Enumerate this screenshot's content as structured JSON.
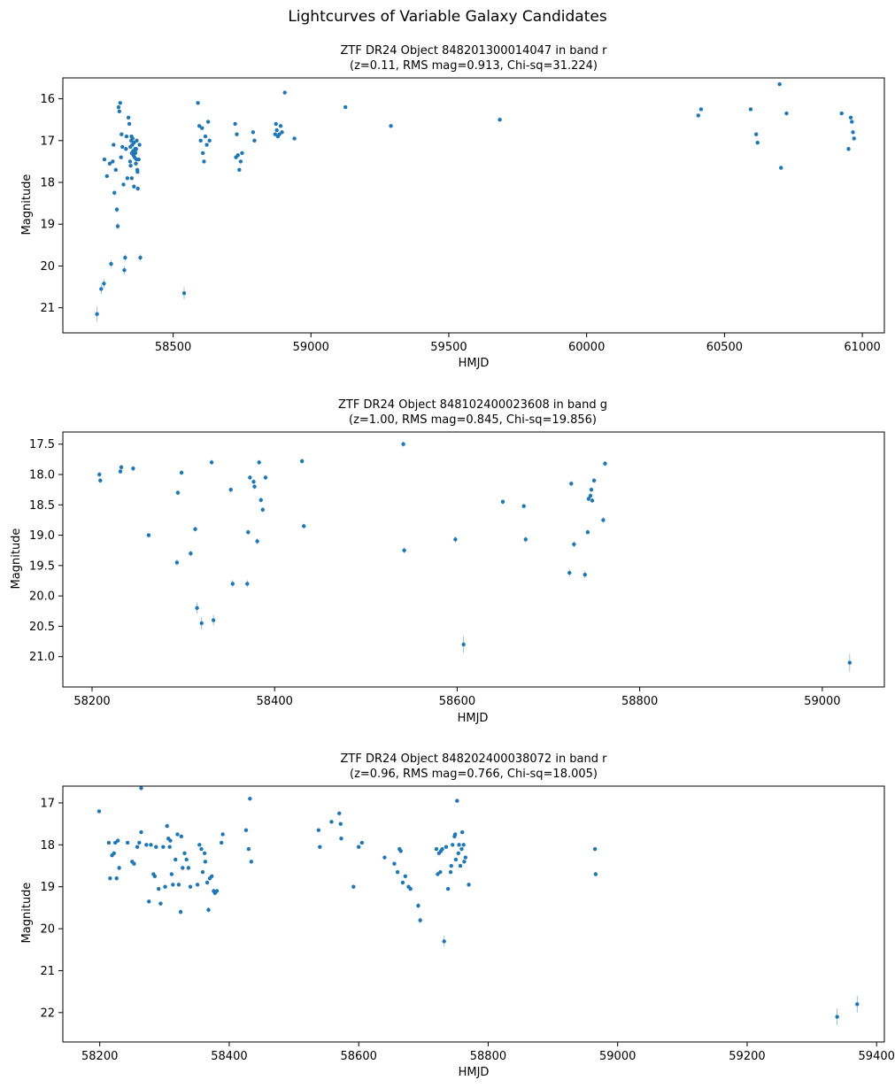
{
  "figure": {
    "title": "Lightcurves of Variable Galaxy Candidates"
  },
  "chart_data": [
    {
      "type": "scatter",
      "title": "ZTF DR24 Object 848201300014047 in band r",
      "subtitle": "(z=0.11, RMS mag=0.913, Chi-sq=31.224)",
      "xlabel": "HMJD",
      "ylabel": "Magnitude",
      "xlim": [
        58100,
        61080
      ],
      "ylim": [
        21.6,
        15.5
      ],
      "y_inverted": true,
      "xticks": [
        58500,
        59000,
        59500,
        60000,
        60500,
        61000
      ],
      "xtick_labels": [
        "58500",
        "59000",
        "59500",
        "60000",
        "60500",
        "61000"
      ],
      "yticks": [
        16,
        17,
        18,
        19,
        20,
        21
      ],
      "ytick_labels": [
        "16",
        "17",
        "18",
        "19",
        "20",
        "21"
      ],
      "color": "#1f77b4",
      "x": [
        58224,
        58239,
        58249,
        58251,
        58260,
        58270,
        58275,
        58281,
        58284,
        58287,
        58292,
        58296,
        58299,
        58302,
        58305,
        58308,
        58311,
        58313,
        58316,
        58320,
        58323,
        58326,
        58329,
        58331,
        58334,
        58338,
        58341,
        58344,
        58346,
        58348,
        58349,
        58350,
        58352,
        58353,
        58355,
        58356,
        58358,
        58360,
        58362,
        58363,
        58365,
        58366,
        58368,
        58370,
        58372,
        58375,
        58378,
        58381,
        58345,
        58350,
        58354,
        58358,
        58362,
        58367,
        58371,
        58540,
        58590,
        58595,
        58600,
        58605,
        58608,
        58612,
        58617,
        58622,
        58627,
        58632,
        58725,
        58728,
        58731,
        58735,
        58740,
        58745,
        58750,
        58790,
        58795,
        58870,
        58873,
        58876,
        58880,
        58885,
        58890,
        58895,
        58905,
        58940,
        59125,
        59290,
        59685,
        60405,
        60415,
        60595,
        60615,
        60620,
        60700,
        60705,
        60725,
        60925,
        60950,
        60958,
        60962,
        60966,
        60970
      ],
      "y": [
        21.15,
        20.55,
        20.42,
        17.45,
        17.85,
        17.55,
        19.95,
        17.5,
        17.1,
        18.25,
        17.7,
        18.65,
        19.05,
        16.2,
        16.3,
        16.1,
        17.4,
        16.85,
        17.15,
        18.05,
        20.1,
        19.8,
        17.2,
        16.9,
        17.9,
        16.45,
        16.6,
        17.5,
        17.6,
        17.0,
        16.9,
        17.3,
        17.1,
        16.95,
        17.25,
        17.35,
        17.05,
        17.4,
        17.2,
        17.3,
        17.55,
        17.2,
        17.0,
        17.7,
        18.15,
        17.45,
        17.1,
        19.8,
        17.15,
        17.9,
        17.3,
        18.1,
        17.25,
        17.45,
        17.75,
        20.65,
        16.1,
        16.65,
        17.0,
        16.7,
        17.3,
        17.5,
        16.9,
        17.1,
        16.55,
        17.0,
        16.6,
        17.4,
        16.85,
        17.35,
        17.7,
        17.5,
        17.3,
        16.8,
        17.0,
        16.85,
        16.6,
        16.75,
        16.9,
        16.85,
        16.65,
        16.8,
        15.85,
        16.95,
        16.2,
        16.65,
        16.5,
        16.4,
        16.25,
        16.25,
        16.85,
        17.05,
        15.65,
        17.65,
        16.35,
        16.35,
        17.2,
        16.45,
        16.55,
        16.8,
        16.95
      ],
      "yerr": [
        0.18,
        0.12,
        0.1,
        0.04,
        0.04,
        0.04,
        0.09,
        0.04,
        0.04,
        0.06,
        0.04,
        0.07,
        0.08,
        0.03,
        0.03,
        0.03,
        0.04,
        0.04,
        0.04,
        0.05,
        0.1,
        0.08,
        0.04,
        0.03,
        0.04,
        0.03,
        0.03,
        0.04,
        0.04,
        0.04,
        0.04,
        0.04,
        0.04,
        0.04,
        0.04,
        0.04,
        0.04,
        0.04,
        0.04,
        0.04,
        0.04,
        0.04,
        0.04,
        0.04,
        0.05,
        0.04,
        0.04,
        0.08,
        0.04,
        0.04,
        0.04,
        0.05,
        0.04,
        0.04,
        0.04,
        0.14,
        0.03,
        0.03,
        0.04,
        0.03,
        0.04,
        0.04,
        0.04,
        0.04,
        0.03,
        0.04,
        0.03,
        0.04,
        0.04,
        0.04,
        0.04,
        0.04,
        0.04,
        0.04,
        0.04,
        0.04,
        0.03,
        0.04,
        0.04,
        0.04,
        0.03,
        0.04,
        0.03,
        0.04,
        0.03,
        0.03,
        0.03,
        0.03,
        0.03,
        0.03,
        0.04,
        0.04,
        0.03,
        0.04,
        0.03,
        0.03,
        0.04,
        0.03,
        0.03,
        0.04,
        0.04
      ]
    },
    {
      "type": "scatter",
      "title": "ZTF DR24 Object 848102400023608 in band g",
      "subtitle": "(z=1.00, RMS mag=0.845, Chi-sq=19.856)",
      "xlabel": "HMJD",
      "ylabel": "Magnitude",
      "xlim": [
        58168,
        59068
      ],
      "ylim": [
        21.5,
        17.3
      ],
      "y_inverted": true,
      "xticks": [
        58200,
        58400,
        58600,
        58800,
        59000
      ],
      "xtick_labels": [
        "58200",
        "58400",
        "58600",
        "58800",
        "59000"
      ],
      "yticks": [
        17.5,
        18.0,
        18.5,
        19.0,
        19.5,
        20.0,
        20.5,
        21.0
      ],
      "ytick_labels": [
        "17.5",
        "18.0",
        "18.5",
        "19.0",
        "19.5",
        "20.0",
        "20.5",
        "21.0"
      ],
      "color": "#1f77b4",
      "x": [
        58208,
        58209,
        58231,
        58232,
        58245,
        58262,
        58293,
        58294,
        58298,
        58308,
        58313,
        58315,
        58320,
        58331,
        58333,
        58352,
        58354,
        58370,
        58371,
        58373,
        58377,
        58378,
        58381,
        58383,
        58385,
        58387,
        58390,
        58430,
        58432,
        58541,
        58542,
        58598,
        58607,
        58650,
        58673,
        58675,
        58723,
        58725,
        58728,
        58740,
        58743,
        58744,
        58746,
        58747,
        58748,
        58750,
        58760,
        58762,
        59030
      ],
      "y": [
        18.0,
        18.1,
        17.95,
        17.88,
        17.9,
        19.0,
        19.45,
        18.3,
        17.97,
        19.3,
        18.9,
        20.2,
        20.45,
        17.8,
        20.4,
        18.25,
        19.8,
        19.8,
        18.95,
        18.05,
        18.12,
        18.2,
        19.1,
        17.8,
        18.42,
        18.58,
        18.05,
        17.78,
        18.85,
        17.5,
        19.25,
        19.07,
        20.8,
        18.45,
        18.52,
        19.07,
        19.62,
        18.15,
        19.15,
        19.65,
        18.95,
        18.4,
        18.35,
        18.25,
        18.43,
        18.1,
        18.75,
        17.82,
        21.1
      ],
      "yerr": [
        0.04,
        0.04,
        0.04,
        0.04,
        0.04,
        0.04,
        0.05,
        0.04,
        0.04,
        0.05,
        0.04,
        0.09,
        0.1,
        0.04,
        0.09,
        0.04,
        0.06,
        0.06,
        0.04,
        0.04,
        0.04,
        0.04,
        0.05,
        0.04,
        0.04,
        0.04,
        0.04,
        0.04,
        0.04,
        0.04,
        0.05,
        0.05,
        0.14,
        0.04,
        0.04,
        0.05,
        0.06,
        0.04,
        0.05,
        0.06,
        0.04,
        0.04,
        0.04,
        0.04,
        0.04,
        0.04,
        0.05,
        0.04,
        0.15
      ]
    },
    {
      "type": "scatter",
      "title": "ZTF DR24 Object 848202400038072 in band r",
      "subtitle": "(z=0.96, RMS mag=0.766, Chi-sq=18.005)",
      "xlabel": "HMJD",
      "ylabel": "Magnitude",
      "xlim": [
        58143,
        59412
      ],
      "ylim": [
        22.7,
        16.6
      ],
      "y_inverted": true,
      "xticks": [
        58200,
        58400,
        58600,
        58800,
        59000,
        59200,
        59400
      ],
      "xtick_labels": [
        "58200",
        "58400",
        "58600",
        "58800",
        "59000",
        "59200",
        "59400"
      ],
      "yticks": [
        17,
        18,
        19,
        20,
        21,
        22
      ],
      "ytick_labels": [
        "17",
        "18",
        "19",
        "20",
        "21",
        "22"
      ],
      "color": "#1f77b4",
      "x": [
        58199,
        58214,
        58216,
        58219,
        58222,
        58224,
        58226,
        58228,
        58230,
        58243,
        58250,
        58253,
        58258,
        58261,
        58264,
        58264,
        58272,
        58276,
        58279,
        58283,
        58285,
        58287,
        58291,
        58294,
        58298,
        58301,
        58304,
        58306,
        58308,
        58309,
        58311,
        58313,
        58317,
        58320,
        58322,
        58325,
        58326,
        58328,
        58331,
        58334,
        58337,
        58340,
        58351,
        58354,
        58357,
        58359,
        58362,
        58363,
        58366,
        58368,
        58370,
        58373,
        58376,
        58378,
        58381,
        58388,
        58390,
        58426,
        58430,
        58432,
        58434,
        58538,
        58540,
        58558,
        58570,
        58572,
        58573,
        58592,
        58600,
        58605,
        58640,
        58655,
        58660,
        58663,
        58665,
        58668,
        58672,
        58677,
        58680,
        58692,
        58695,
        58720,
        58722,
        58724,
        58726,
        58727,
        58729,
        58732,
        58735,
        58738,
        58742,
        58743,
        58745,
        58748,
        58749,
        58750,
        58752,
        58754,
        58755,
        58757,
        58759,
        58760,
        58762,
        58763,
        58765,
        58770,
        58965,
        58966,
        59339,
        59370
      ],
      "y": [
        17.2,
        17.95,
        18.8,
        18.25,
        18.2,
        17.95,
        18.8,
        17.9,
        18.55,
        17.95,
        18.4,
        18.45,
        18.05,
        17.95,
        17.7,
        16.65,
        18.0,
        19.35,
        18.0,
        18.7,
        18.75,
        18.05,
        19.05,
        19.4,
        18.05,
        19.0,
        17.55,
        17.85,
        18.05,
        17.9,
        18.7,
        18.95,
        18.35,
        17.75,
        18.95,
        19.6,
        17.8,
        18.55,
        18.2,
        18.35,
        18.55,
        19.0,
        18.95,
        18.0,
        18.1,
        18.65,
        18.2,
        18.4,
        18.9,
        19.55,
        18.8,
        18.75,
        19.1,
        19.15,
        19.1,
        17.95,
        17.75,
        17.65,
        18.1,
        16.9,
        18.4,
        17.65,
        18.05,
        17.45,
        17.25,
        17.5,
        17.85,
        19.0,
        18.05,
        17.95,
        18.3,
        18.45,
        18.65,
        18.1,
        18.15,
        18.9,
        18.75,
        19.0,
        19.05,
        19.45,
        19.8,
        18.1,
        18.7,
        18.2,
        18.65,
        18.15,
        18.1,
        20.3,
        18.05,
        19.05,
        18.65,
        18.5,
        18.0,
        17.8,
        17.75,
        18.35,
        16.95,
        18.2,
        18.0,
        18.5,
        18.1,
        17.7,
        18.0,
        18.4,
        18.3,
        18.95,
        18.1,
        18.7,
        22.1,
        21.8
      ],
      "yerr": [
        0.04,
        0.04,
        0.05,
        0.04,
        0.04,
        0.04,
        0.05,
        0.04,
        0.05,
        0.04,
        0.04,
        0.04,
        0.04,
        0.04,
        0.04,
        0.03,
        0.04,
        0.05,
        0.04,
        0.04,
        0.04,
        0.04,
        0.05,
        0.05,
        0.04,
        0.05,
        0.04,
        0.04,
        0.04,
        0.04,
        0.04,
        0.05,
        0.04,
        0.04,
        0.05,
        0.06,
        0.04,
        0.04,
        0.04,
        0.04,
        0.04,
        0.05,
        0.05,
        0.04,
        0.04,
        0.04,
        0.04,
        0.04,
        0.05,
        0.06,
        0.05,
        0.04,
        0.05,
        0.05,
        0.05,
        0.04,
        0.04,
        0.04,
        0.04,
        0.03,
        0.04,
        0.04,
        0.04,
        0.04,
        0.03,
        0.04,
        0.04,
        0.05,
        0.04,
        0.04,
        0.04,
        0.04,
        0.04,
        0.04,
        0.04,
        0.05,
        0.04,
        0.05,
        0.05,
        0.06,
        0.07,
        0.04,
        0.04,
        0.04,
        0.04,
        0.04,
        0.04,
        0.13,
        0.04,
        0.05,
        0.04,
        0.04,
        0.04,
        0.04,
        0.04,
        0.04,
        0.03,
        0.04,
        0.04,
        0.04,
        0.04,
        0.04,
        0.04,
        0.04,
        0.04,
        0.05,
        0.04,
        0.05,
        0.2,
        0.2
      ]
    }
  ]
}
